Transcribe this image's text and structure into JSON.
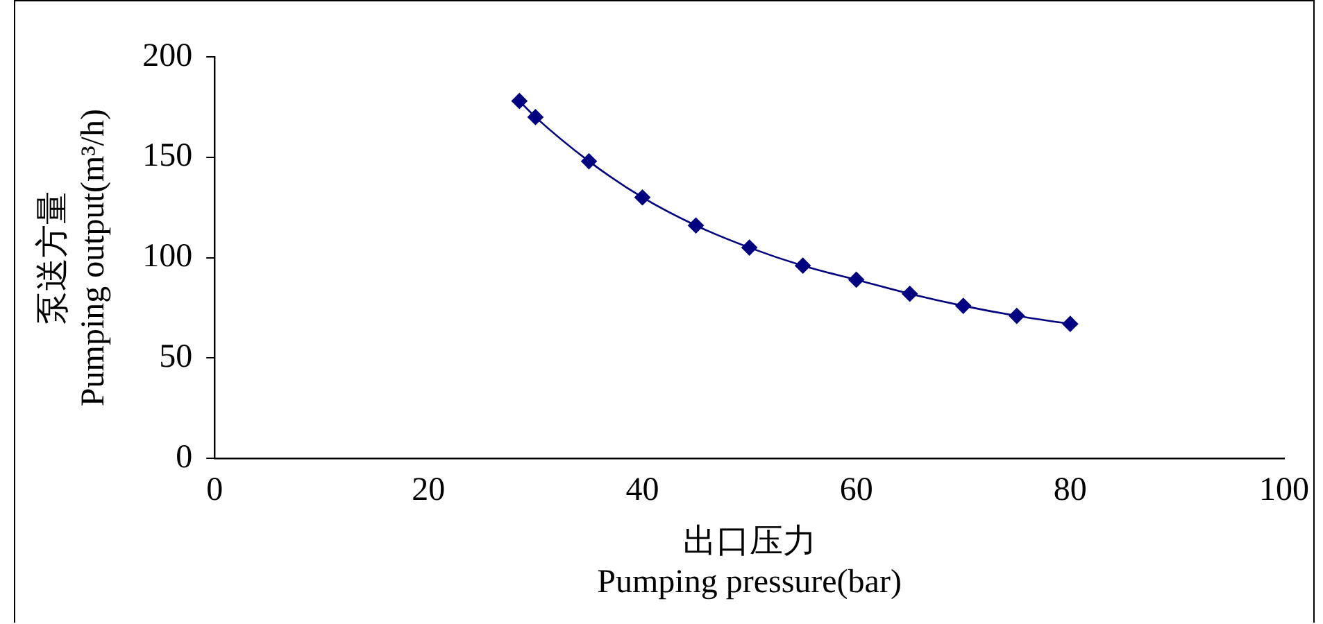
{
  "chart_data": {
    "type": "line",
    "xlabel": "出口压力\nPumping pressure(bar)",
    "ylabel": "泵送方量\nPumping output(m³/h)",
    "x": [
      28.5,
      30,
      35,
      40,
      45,
      50,
      55,
      60,
      65,
      70,
      75,
      80
    ],
    "series": [
      {
        "color": "#000080",
        "values": [
          178,
          170,
          148,
          130,
          116,
          105,
          96,
          89,
          82,
          76,
          71,
          67
        ]
      }
    ],
    "xlim": [
      0,
      100
    ],
    "xticks": [
      0,
      20,
      40,
      60,
      80,
      100
    ],
    "ylim": [
      0,
      200
    ],
    "yticks": [
      0,
      50,
      100,
      150,
      200
    ],
    "grid": false,
    "legend": false,
    "marker": "diamond",
    "line_style": "solid"
  }
}
